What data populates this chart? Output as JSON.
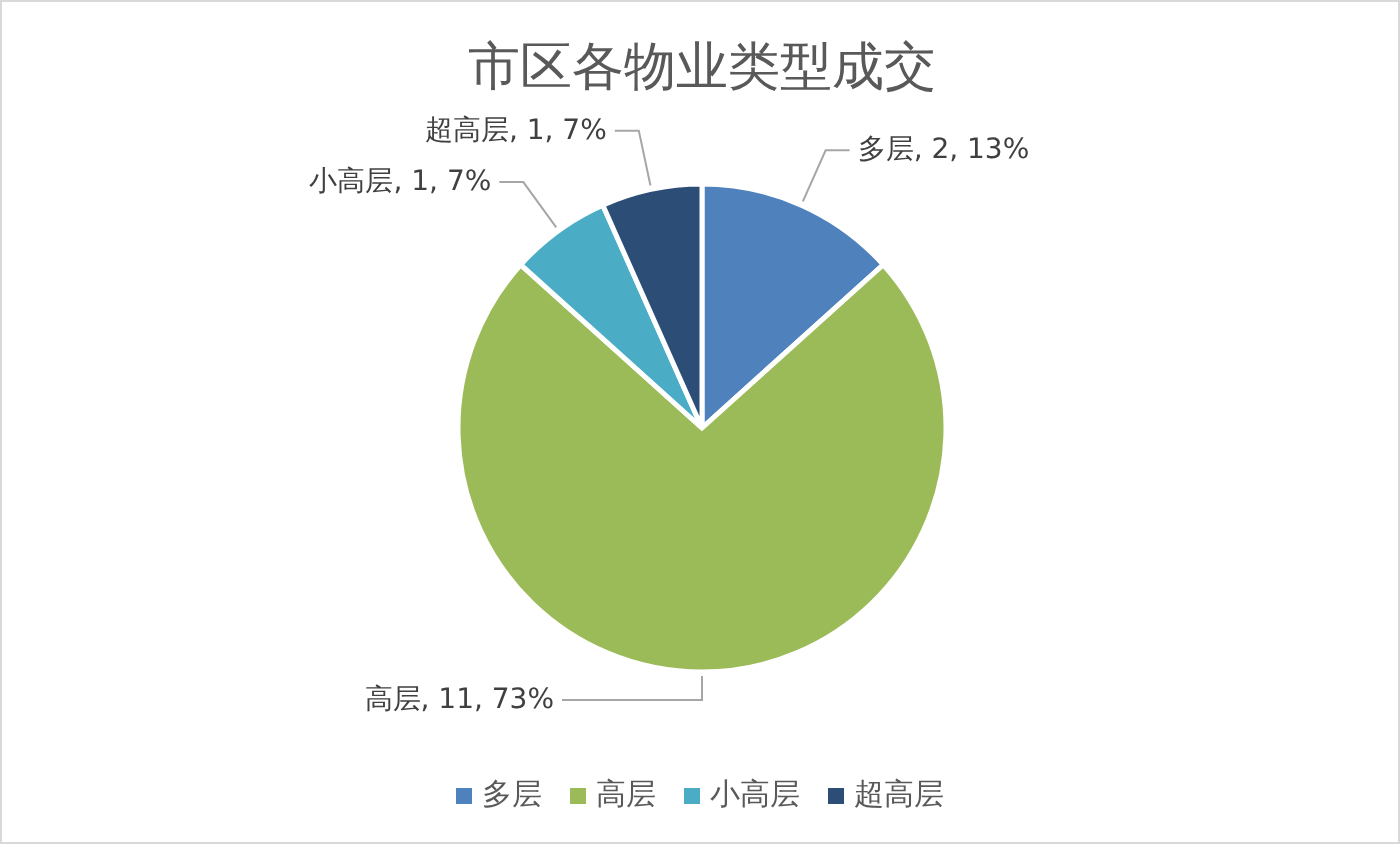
{
  "chart_data": {
    "type": "pie",
    "title": "市区各物业类型成交",
    "categories": [
      "多层",
      "高层",
      "小高层",
      "超高层"
    ],
    "values": [
      2,
      11,
      1,
      1
    ],
    "colors": [
      "#4f81bd",
      "#9bbb59",
      "#4bacc6",
      "#2c4d75"
    ],
    "value_labels": [
      "多层, 2, 13%",
      "高层, 11, 73%",
      "小高层, 1, 7%",
      "超高层, 1, 7%"
    ],
    "legend": "bottom"
  }
}
